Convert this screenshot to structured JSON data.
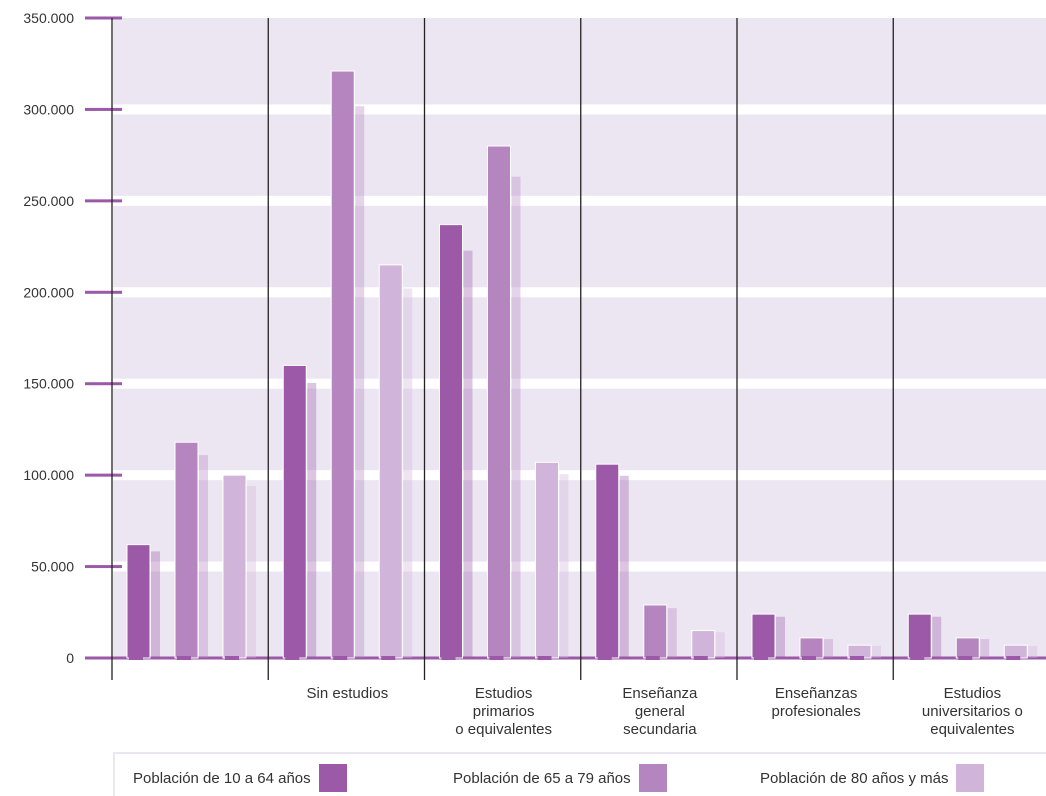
{
  "chart_data": {
    "type": "bar",
    "categories": [
      "",
      "Sin estudios",
      "Estudios primarios o equivalentes",
      "Enseñanza general secundaria",
      "Enseñanzas profesionales",
      "Estudios universitarios o equivalentes"
    ],
    "category_lines": [
      [],
      [
        "Sin estudios"
      ],
      [
        "Estudios",
        "primarios",
        "o equivalentes"
      ],
      [
        "Enseñanza",
        "general",
        "secundaria"
      ],
      [
        "Enseñanzas",
        "profesionales"
      ],
      [
        "Estudios",
        "universitarios o",
        "equivalentes"
      ]
    ],
    "series": [
      {
        "name": "Población de 10 a 64 años",
        "values": [
          62000,
          160000,
          237000,
          106000,
          24000,
          24000
        ]
      },
      {
        "name": "Población de 65 a 79 años",
        "values": [
          118000,
          321000,
          280000,
          29000,
          11000,
          11000
        ]
      },
      {
        "name": "Población de 80 años y más",
        "values": [
          100000,
          215000,
          107000,
          15000,
          7000,
          7000
        ]
      }
    ],
    "ylim": [
      0,
      350000
    ],
    "yticks": [
      0,
      50000,
      100000,
      150000,
      200000,
      250000,
      300000,
      350000
    ],
    "ytick_labels": [
      "0",
      "50.000",
      "100.000",
      "150.000",
      "200.000",
      "250.000",
      "300.000",
      "350.000"
    ],
    "title": "",
    "xlabel": "",
    "ylabel": "",
    "grid": true,
    "legend_position": "bottom"
  },
  "colors": {
    "plot_background": "#ece6f2",
    "grid": "#ffffff",
    "axis_ticks": "#9b59a8",
    "series": [
      "#9b59a8",
      "#b585c0",
      "#d1b4da"
    ]
  }
}
